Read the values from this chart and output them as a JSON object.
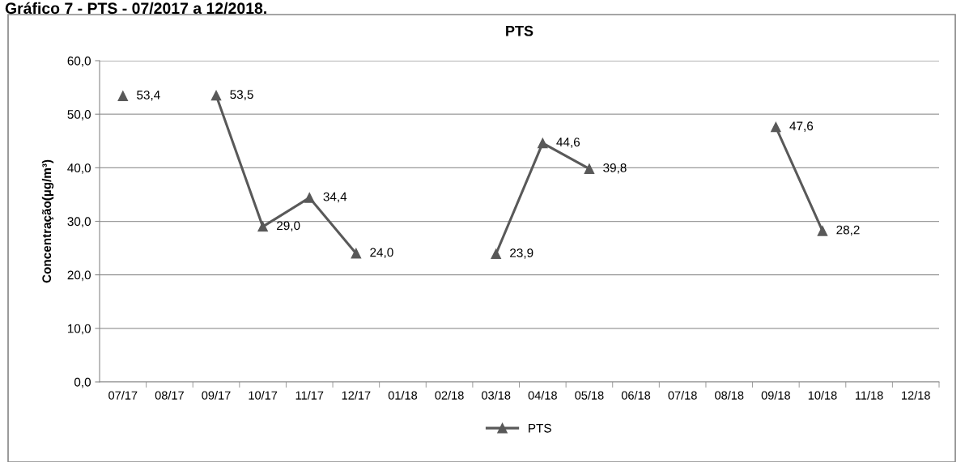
{
  "chart_data": {
    "type": "line",
    "title": "PTS",
    "ylabel": "Concentração(µg/m³)",
    "annotations": [
      "Gráfico 7 - PTS - 07/2017 a 12/2018."
    ],
    "categories": [
      "07/17",
      "08/17",
      "09/17",
      "10/17",
      "11/17",
      "12/17",
      "01/18",
      "02/18",
      "03/18",
      "04/18",
      "05/18",
      "06/18",
      "07/18",
      "08/18",
      "09/18",
      "10/18",
      "11/18",
      "12/18"
    ],
    "series": [
      {
        "name": "PTS",
        "color": "#595959",
        "values": [
          53.4,
          null,
          53.5,
          29.0,
          34.4,
          24.0,
          null,
          null,
          23.9,
          44.6,
          39.8,
          null,
          null,
          null,
          47.6,
          28.2,
          null,
          null
        ],
        "value_labels": [
          "53,4",
          null,
          "53,5",
          "29,0",
          "34,4",
          "24,0",
          null,
          null,
          "23,9",
          "44,6",
          "39,8",
          null,
          null,
          null,
          "47,6",
          "28,2",
          null,
          null
        ]
      }
    ],
    "ylim": [
      0,
      60
    ],
    "yticks": [
      {
        "value": 0,
        "label": "0,0"
      },
      {
        "value": 10,
        "label": "10,0"
      },
      {
        "value": 20,
        "label": "20,0"
      },
      {
        "value": 30,
        "label": "30,0"
      },
      {
        "value": 40,
        "label": "40,0"
      },
      {
        "value": 50,
        "label": "50,0"
      },
      {
        "value": 60,
        "label": "60,0"
      }
    ],
    "grid": "y",
    "legend": "bottom",
    "marker": "triangle",
    "line_style": "solid"
  }
}
